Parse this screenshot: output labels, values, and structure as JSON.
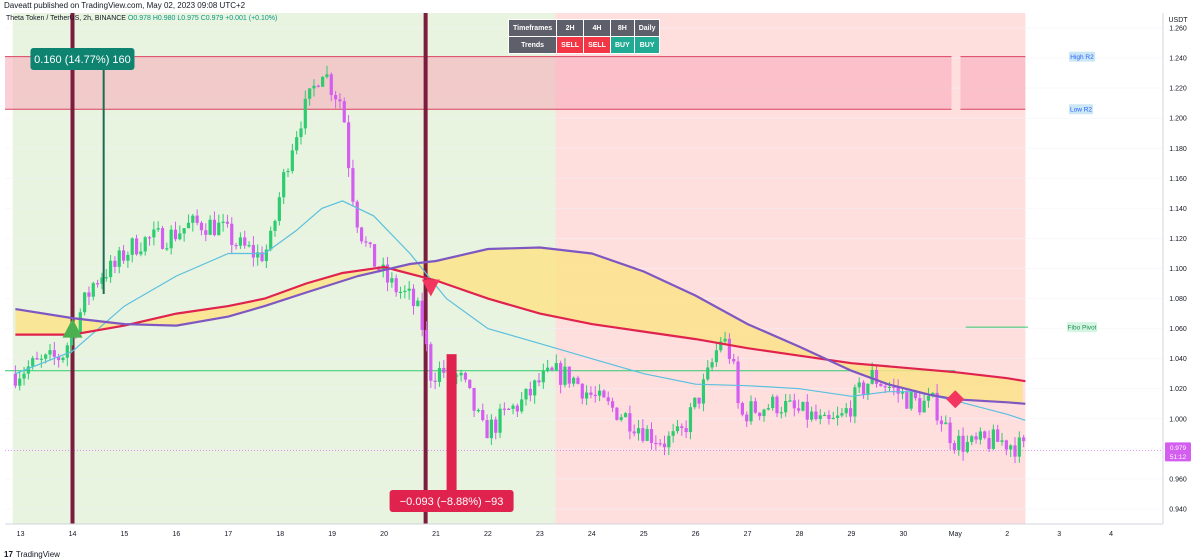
{
  "header": {
    "published": "Daveatt published on TradingView.com, May 02, 2023 09:08 UTC+2",
    "symbol": "Theta Token / TetherUS, 2h, BINANCE",
    "ohlc": "O0.978 H0.980 L0.975 C0.979 +0.001 (+0.10%)"
  },
  "footer": {
    "brand": "TradingView"
  },
  "timeframes_table": {
    "row1": [
      "Timeframes",
      "2H",
      "4H",
      "8H",
      "Daily"
    ],
    "row2": [
      "Trends",
      "SELL",
      "SELL",
      "BUY",
      "BUY"
    ]
  },
  "annotations": {
    "long_measure": "0.160 (14.77%) 160",
    "short_measure": "−0.093 (−8.88%) −93"
  },
  "price_labels": {
    "high_r2": "High R2",
    "low_r2": "Low R2",
    "fibo_pivot": "Fibo Pivot",
    "last_price": "0.979",
    "countdown": "51:12"
  },
  "colors": {
    "bull": "#2ecc71",
    "bear": "#d35ef0",
    "ema_fast": "#5bc0de",
    "ema_mid": "#e0234e",
    "ema_slow": "#7e57c2",
    "cloud": "#fbe38a",
    "bg_buy": "#e8f3e0",
    "bg_sell": "#ffdede"
  },
  "chart_data": {
    "type": "candlestick",
    "symbol": "Theta Token / TetherUS",
    "interval": "2h",
    "exchange": "BINANCE",
    "y_unit": "USDT",
    "ylim": [
      0.93,
      1.27
    ],
    "y_ticks": [
      "1.260",
      "1.240",
      "1.220",
      "1.200",
      "1.180",
      "1.160",
      "1.140",
      "1.120",
      "1.100",
      "1.080",
      "1.060",
      "1.040",
      "1.020",
      "1.000",
      "0.980",
      "0.960",
      "0.940"
    ],
    "x_ticks": [
      "13",
      "14",
      "15",
      "16",
      "17",
      "18",
      "19",
      "20",
      "21",
      "22",
      "23",
      "24",
      "25",
      "26",
      "27",
      "28",
      "29",
      "30",
      "May",
      "2",
      "3",
      "4"
    ],
    "close_path": [
      [
        12.9,
        1.03
      ],
      [
        13.2,
        1.035
      ],
      [
        13.5,
        1.038
      ],
      [
        13.8,
        1.042
      ],
      [
        14.0,
        1.058
      ],
      [
        14.2,
        1.075
      ],
      [
        14.4,
        1.09
      ],
      [
        14.6,
        1.098
      ],
      [
        14.8,
        1.1
      ],
      [
        15.0,
        1.11
      ],
      [
        15.3,
        1.118
      ],
      [
        15.6,
        1.12
      ],
      [
        15.9,
        1.122
      ],
      [
        16.2,
        1.128
      ],
      [
        16.5,
        1.13
      ],
      [
        16.8,
        1.128
      ],
      [
        17.0,
        1.122
      ],
      [
        17.2,
        1.115
      ],
      [
        17.4,
        1.112
      ],
      [
        17.6,
        1.108
      ],
      [
        17.8,
        1.115
      ],
      [
        18.0,
        1.15
      ],
      [
        18.2,
        1.18
      ],
      [
        18.4,
        1.2
      ],
      [
        18.6,
        1.215
      ],
      [
        18.8,
        1.235
      ],
      [
        19.0,
        1.22
      ],
      [
        19.2,
        1.21
      ],
      [
        19.35,
        1.16
      ],
      [
        19.5,
        1.13
      ],
      [
        19.7,
        1.11
      ],
      [
        19.9,
        1.1
      ],
      [
        20.1,
        1.09
      ],
      [
        20.3,
        1.085
      ],
      [
        20.5,
        1.08
      ],
      [
        20.7,
        1.068
      ],
      [
        20.9,
        1.03
      ],
      [
        21.1,
        1.032
      ],
      [
        21.3,
        1.03
      ],
      [
        21.5,
        1.025
      ],
      [
        21.7,
        1.01
      ],
      [
        21.9,
        0.992
      ],
      [
        22.1,
        0.995
      ],
      [
        22.4,
        1.005
      ],
      [
        22.7,
        1.012
      ],
      [
        23.0,
        1.025
      ],
      [
        23.3,
        1.03
      ],
      [
        23.6,
        1.028
      ],
      [
        23.9,
        1.018
      ],
      [
        24.2,
        1.01
      ],
      [
        24.5,
        1.005
      ],
      [
        24.8,
        0.998
      ],
      [
        25.1,
        0.99
      ],
      [
        25.4,
        0.985
      ],
      [
        25.7,
        0.988
      ],
      [
        26.0,
        1.01
      ],
      [
        26.2,
        1.025
      ],
      [
        26.5,
        1.055
      ],
      [
        26.7,
        1.04
      ],
      [
        26.85,
        1.0
      ],
      [
        27.0,
        1.005
      ],
      [
        27.3,
        1.008
      ],
      [
        27.6,
        1.01
      ],
      [
        27.9,
        1.005
      ],
      [
        28.2,
        1.002
      ],
      [
        28.5,
        0.995
      ],
      [
        28.8,
        1.0
      ],
      [
        29.1,
        1.015
      ],
      [
        29.4,
        1.028
      ],
      [
        29.7,
        1.022
      ],
      [
        30.0,
        1.015
      ],
      [
        30.3,
        1.01
      ],
      [
        30.6,
        1.01
      ],
      [
        30.8,
        0.995
      ],
      [
        31.0,
        0.985
      ],
      [
        31.3,
        0.982
      ],
      [
        31.6,
        0.985
      ],
      [
        31.9,
        0.985
      ],
      [
        32.2,
        0.982
      ],
      [
        32.35,
        0.979
      ]
    ],
    "ema_fast": [
      [
        12.9,
        1.03
      ],
      [
        14.0,
        1.045
      ],
      [
        15.0,
        1.075
      ],
      [
        16.0,
        1.095
      ],
      [
        17.0,
        1.11
      ],
      [
        17.7,
        1.11
      ],
      [
        18.3,
        1.125
      ],
      [
        18.8,
        1.14
      ],
      [
        19.2,
        1.145
      ],
      [
        19.8,
        1.135
      ],
      [
        20.5,
        1.11
      ],
      [
        21.2,
        1.08
      ],
      [
        22.0,
        1.06
      ],
      [
        23.0,
        1.05
      ],
      [
        24.0,
        1.04
      ],
      [
        25.0,
        1.03
      ],
      [
        26.0,
        1.023
      ],
      [
        27.0,
        1.022
      ],
      [
        28.0,
        1.02
      ],
      [
        29.0,
        1.015
      ],
      [
        29.7,
        1.018
      ],
      [
        30.2,
        1.018
      ],
      [
        31.0,
        1.012
      ],
      [
        32.0,
        1.003
      ],
      [
        32.35,
        0.999
      ]
    ],
    "ema_mid": [
      [
        12.9,
        1.056
      ],
      [
        14.0,
        1.056
      ],
      [
        15.0,
        1.062
      ],
      [
        16.0,
        1.07
      ],
      [
        17.0,
        1.075
      ],
      [
        17.7,
        1.08
      ],
      [
        18.5,
        1.09
      ],
      [
        19.2,
        1.097
      ],
      [
        20.0,
        1.101
      ],
      [
        21.0,
        1.092
      ],
      [
        22.0,
        1.08
      ],
      [
        23.0,
        1.07
      ],
      [
        24.0,
        1.063
      ],
      [
        25.0,
        1.058
      ],
      [
        26.0,
        1.053
      ],
      [
        27.0,
        1.047
      ],
      [
        28.0,
        1.042
      ],
      [
        29.0,
        1.037
      ],
      [
        30.0,
        1.034
      ],
      [
        31.0,
        1.031
      ],
      [
        32.0,
        1.027
      ],
      [
        32.35,
        1.025
      ]
    ],
    "ema_slow": [
      [
        12.9,
        1.073
      ],
      [
        14.0,
        1.067
      ],
      [
        15.0,
        1.063
      ],
      [
        16.0,
        1.062
      ],
      [
        17.0,
        1.068
      ],
      [
        17.7,
        1.075
      ],
      [
        18.5,
        1.084
      ],
      [
        19.5,
        1.095
      ],
      [
        20.5,
        1.103
      ],
      [
        21.0,
        1.105
      ],
      [
        22.0,
        1.113
      ],
      [
        23.0,
        1.114
      ],
      [
        24.0,
        1.11
      ],
      [
        25.0,
        1.098
      ],
      [
        26.0,
        1.082
      ],
      [
        27.0,
        1.063
      ],
      [
        28.0,
        1.048
      ],
      [
        29.0,
        1.032
      ],
      [
        29.7,
        1.023
      ],
      [
        30.5,
        1.016
      ],
      [
        31.0,
        1.013
      ],
      [
        32.0,
        1.011
      ],
      [
        32.35,
        1.01
      ]
    ],
    "levels": {
      "high_r2": 1.241,
      "low_r2": 1.206,
      "fibo_pivot": 1.061,
      "horizontal": 1.032,
      "last_price": 0.979
    },
    "signals": [
      {
        "type": "buy",
        "date": 14.0,
        "price": 1.06
      },
      {
        "type": "sell",
        "date": 20.9,
        "price": 1.088
      },
      {
        "type": "diamond",
        "date": 31.0,
        "price": 1.013
      }
    ],
    "measures": [
      {
        "from_date": 14.6,
        "from_price": 1.083,
        "to_price": 1.243
      },
      {
        "from_date": 21.3,
        "from_price": 1.043,
        "to_price": 0.95
      }
    ],
    "background_zones": [
      {
        "from": 12.85,
        "to": 23.3,
        "state": "buy"
      },
      {
        "from": 23.3,
        "to": 32.35,
        "state": "sell"
      }
    ],
    "vertical_markers": [
      14.0,
      20.8
    ]
  }
}
